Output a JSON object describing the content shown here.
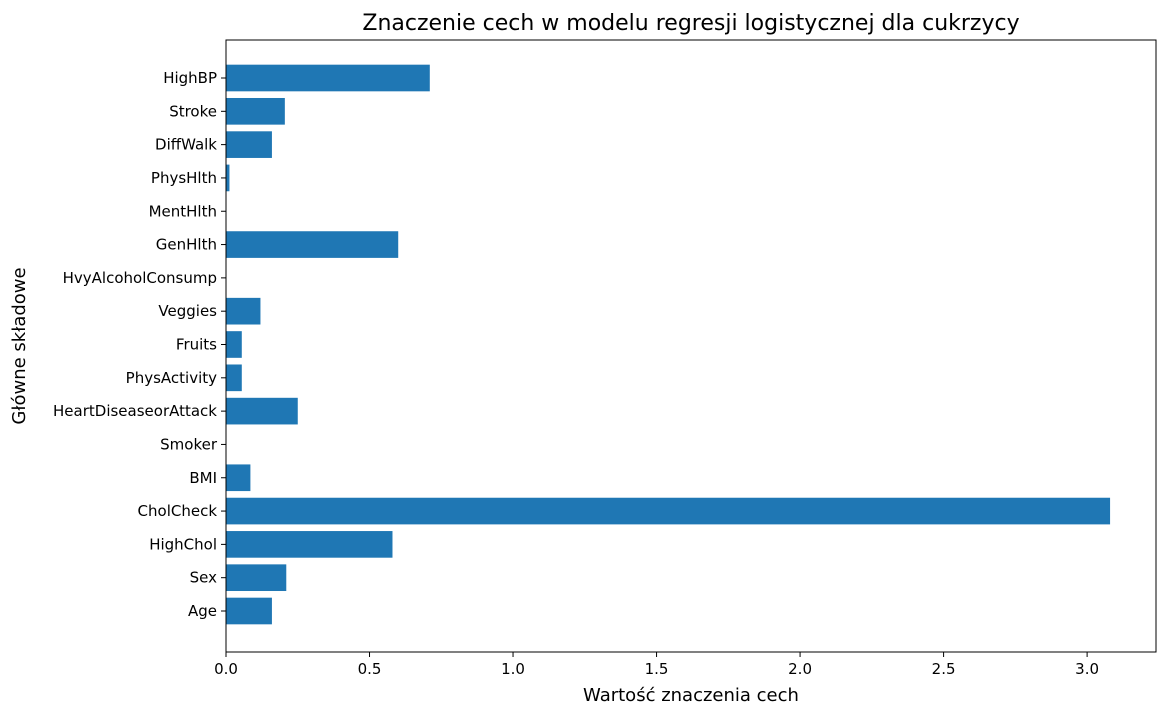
{
  "chart_data": {
    "type": "bar",
    "orientation": "horizontal",
    "title": "Znaczenie cech w modelu regresji logistycznej dla cukrzycy",
    "xlabel": "Wartość znaczenia cech",
    "ylabel": "Główne składowe",
    "categories": [
      "Age",
      "Sex",
      "HighChol",
      "CholCheck",
      "BMI",
      "Smoker",
      "HeartDiseaseorAttack",
      "PhysActivity",
      "Fruits",
      "Veggies",
      "HvyAlcoholConsump",
      "GenHlth",
      "MentHlth",
      "PhysHlth",
      "DiffWalk",
      "Stroke",
      "HighBP"
    ],
    "values": [
      0.16,
      0.21,
      0.58,
      3.08,
      0.085,
      0.0,
      0.25,
      0.055,
      0.055,
      0.12,
      0.0,
      0.6,
      0.0,
      0.012,
      0.16,
      0.205,
      0.71
    ],
    "xlim": [
      0,
      3.24
    ],
    "xticks": [
      "0.0",
      "0.5",
      "1.0",
      "1.5",
      "2.0",
      "2.5",
      "3.0"
    ],
    "xtick_values": [
      0,
      0.5,
      1.0,
      1.5,
      2.0,
      2.5,
      3.0
    ],
    "bar_color": "#1f77b4",
    "grid": false,
    "legend": false
  }
}
